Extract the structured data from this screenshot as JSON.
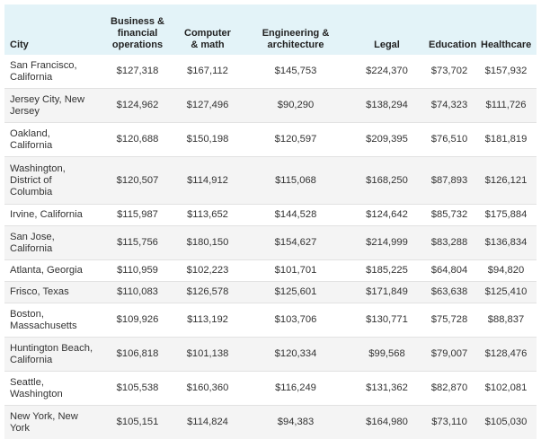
{
  "headers": [
    "City",
    "Business & financial operations",
    "Computer & math",
    "Engineering & architecture",
    "Legal",
    "Education",
    "Healthcare"
  ],
  "rows": [
    {
      "city": "San Francisco, California",
      "values": [
        "$127,318",
        "$167,112",
        "$145,753",
        "$224,370",
        "$73,702",
        "$157,932"
      ]
    },
    {
      "city": "Jersey City, New Jersey",
      "values": [
        "$124,962",
        "$127,496",
        "$90,290",
        "$138,294",
        "$74,323",
        "$111,726"
      ]
    },
    {
      "city": "Oakland, California",
      "values": [
        "$120,688",
        "$150,198",
        "$120,597",
        "$209,395",
        "$76,510",
        "$181,819"
      ]
    },
    {
      "city": "Washington, District of Columbia",
      "values": [
        "$120,507",
        "$114,912",
        "$115,068",
        "$168,250",
        "$87,893",
        "$126,121"
      ]
    },
    {
      "city": "Irvine, California",
      "values": [
        "$115,987",
        "$113,652",
        "$144,528",
        "$124,642",
        "$85,732",
        "$175,884"
      ]
    },
    {
      "city": "San Jose, California",
      "values": [
        "$115,756",
        "$180,150",
        "$154,627",
        "$214,999",
        "$83,288",
        "$136,834"
      ]
    },
    {
      "city": "Atlanta, Georgia",
      "values": [
        "$110,959",
        "$102,223",
        "$101,701",
        "$185,225",
        "$64,804",
        "$94,820"
      ]
    },
    {
      "city": "Frisco, Texas",
      "values": [
        "$110,083",
        "$126,578",
        "$125,601",
        "$171,849",
        "$63,638",
        "$125,410"
      ]
    },
    {
      "city": "Boston, Massachusetts",
      "values": [
        "$109,926",
        "$113,192",
        "$103,706",
        "$130,771",
        "$75,728",
        "$88,837"
      ]
    },
    {
      "city": "Huntington Beach, California",
      "values": [
        "$106,818",
        "$101,138",
        "$120,334",
        "$99,568",
        "$79,007",
        "$128,476"
      ]
    },
    {
      "city": "Seattle, Washington",
      "values": [
        "$105,538",
        "$160,360",
        "$116,249",
        "$131,362",
        "$82,870",
        "$102,081"
      ]
    },
    {
      "city": "New York, New York",
      "values": [
        "$105,151",
        "$114,824",
        "$94,383",
        "$164,980",
        "$73,110",
        "$105,030"
      ]
    }
  ]
}
